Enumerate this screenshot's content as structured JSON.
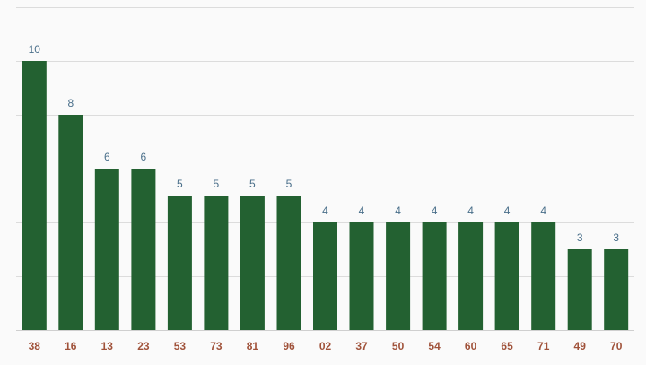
{
  "chart_data": {
    "type": "bar",
    "categories": [
      "38",
      "16",
      "13",
      "23",
      "53",
      "73",
      "81",
      "96",
      "02",
      "37",
      "50",
      "54",
      "60",
      "65",
      "71",
      "49",
      "70"
    ],
    "values": [
      10,
      8,
      6,
      6,
      5,
      5,
      5,
      5,
      4,
      4,
      4,
      4,
      4,
      4,
      4,
      3,
      3
    ],
    "title": "",
    "xlabel": "",
    "ylabel": "",
    "ylim": [
      0,
      12
    ],
    "grid": true,
    "data_labels": true,
    "colors": {
      "bar": "#236131",
      "value_label": "#4a6f8a",
      "tick_label": "#a0523a",
      "grid": "#dcdcdc",
      "background": "#fafafa"
    }
  }
}
